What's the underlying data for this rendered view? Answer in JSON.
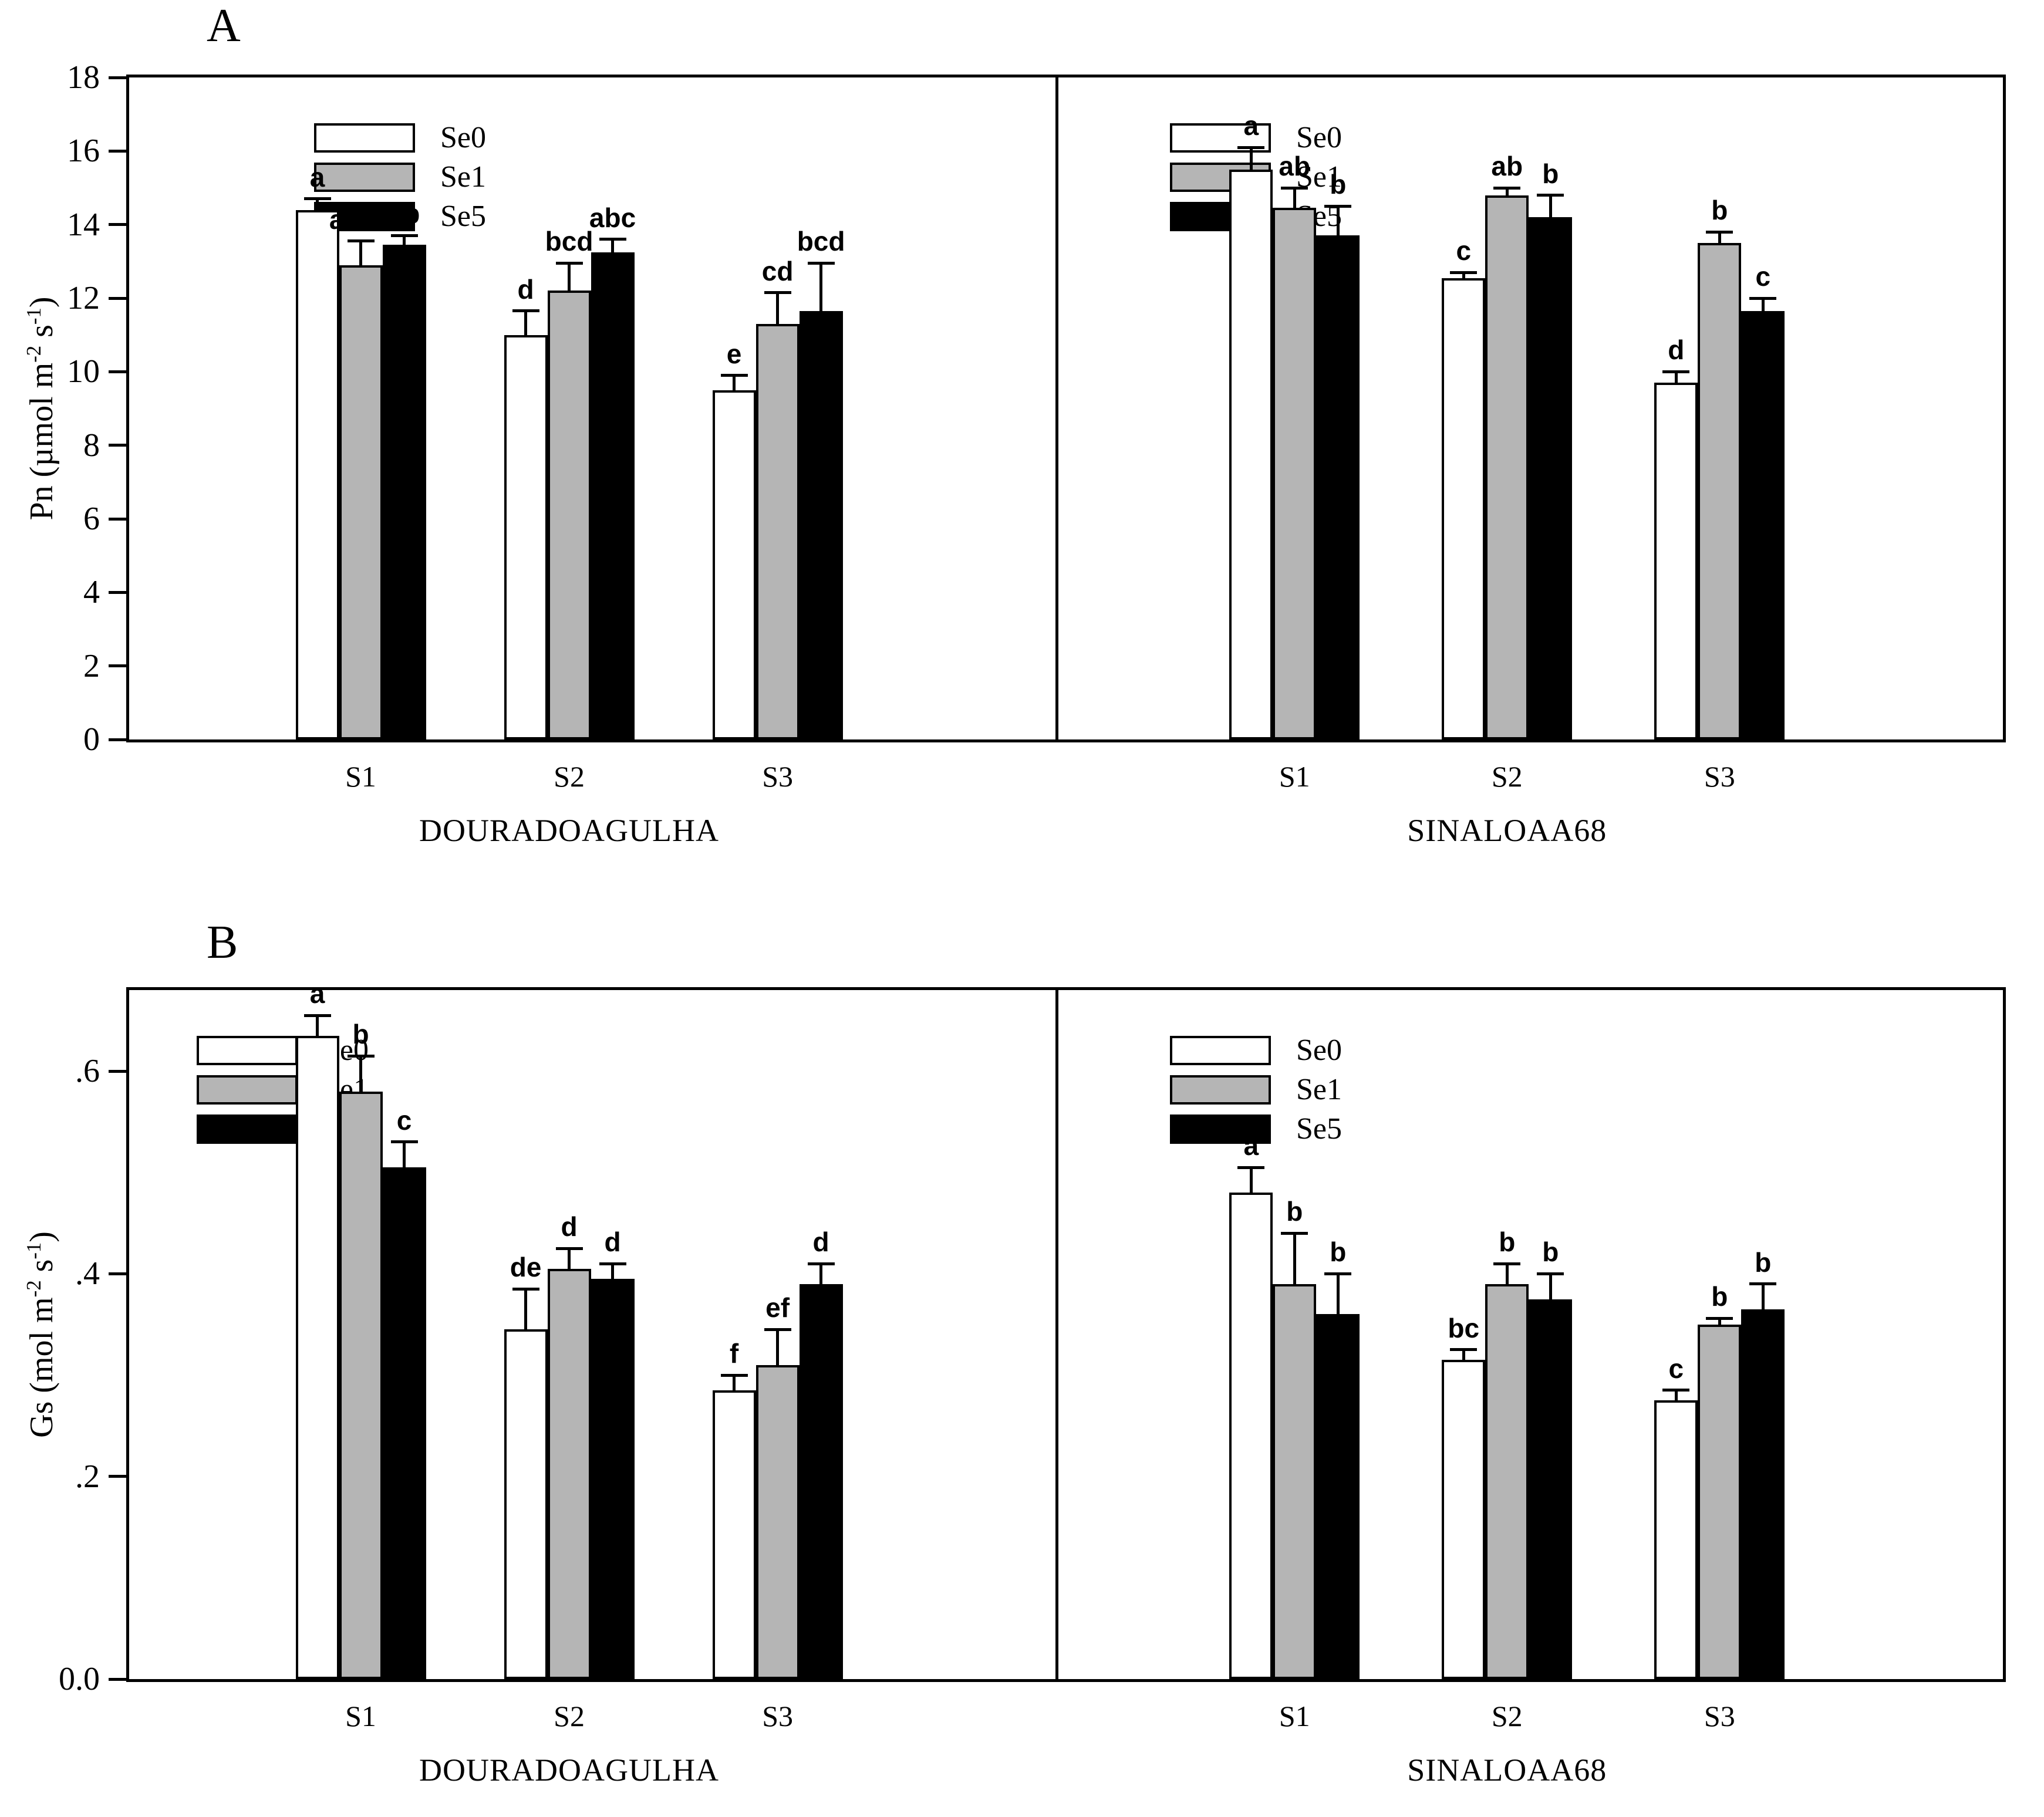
{
  "figure": {
    "background": "#ffffff",
    "text_color": "#000000"
  },
  "colors": {
    "Se0": "#ffffff",
    "Se1": "#b5b5b5",
    "Se5": "#000000",
    "axis": "#000000"
  },
  "chart_data": [
    {
      "panel": "A",
      "type": "bar",
      "ylabel": {
        "pre": "Pn (µmol m",
        "sup1": "-2",
        "mid": " s",
        "sup2": "-1",
        "post": ")"
      },
      "ylim": [
        0,
        18
      ],
      "yticks": [
        0,
        2,
        4,
        6,
        8,
        10,
        12,
        14,
        16,
        18
      ],
      "ytick_labels": [
        "0",
        "2",
        "4",
        "6",
        "8",
        "10",
        "12",
        "14",
        "16",
        "18"
      ],
      "grid": false,
      "legend_position": "top-left of each half",
      "legend": [
        "Se0",
        "Se1",
        "Se5"
      ],
      "groups": [
        "S1",
        "S2",
        "S3"
      ],
      "halves": [
        {
          "cultivar": "DOURADOAGULHA",
          "series": [
            {
              "name": "Se0",
              "values": [
                14.4,
                11.0,
                9.5
              ],
              "errors": [
                0.3,
                0.65,
                0.4
              ],
              "letters": [
                "a",
                "d",
                "e"
              ]
            },
            {
              "name": "Se1",
              "values": [
                12.9,
                12.2,
                11.3
              ],
              "errors": [
                0.65,
                0.75,
                0.85
              ],
              "letters": [
                "abcd",
                "bcd",
                "cd"
              ]
            },
            {
              "name": "Se5",
              "values": [
                13.45,
                13.25,
                11.65
              ],
              "errors": [
                0.25,
                0.35,
                1.3
              ],
              "letters": [
                "ab",
                "abc",
                "bcd"
              ]
            }
          ]
        },
        {
          "cultivar": "SINALOAA68",
          "series": [
            {
              "name": "Se0",
              "values": [
                15.5,
                12.55,
                9.7
              ],
              "errors": [
                0.6,
                0.15,
                0.3
              ],
              "letters": [
                "a",
                "c",
                "d"
              ]
            },
            {
              "name": "Se1",
              "values": [
                14.45,
                14.8,
                13.5
              ],
              "errors": [
                0.55,
                0.2,
                0.3
              ],
              "letters": [
                "ab",
                "ab",
                "b"
              ]
            },
            {
              "name": "Se5",
              "values": [
                13.7,
                14.2,
                11.65
              ],
              "errors": [
                0.8,
                0.6,
                0.35
              ],
              "letters": [
                "b",
                "b",
                "c"
              ]
            }
          ]
        }
      ]
    },
    {
      "panel": "B",
      "type": "bar",
      "ylabel": {
        "pre": "Gs (mol m",
        "sup1": "-2",
        "mid": " s",
        "sup2": "-1",
        "post": ")"
      },
      "ylim": [
        0,
        0.68
      ],
      "yticks": [
        0,
        0.2,
        0.4,
        0.6
      ],
      "ytick_labels": [
        "0.0",
        ".2",
        ".4",
        ".6"
      ],
      "grid": false,
      "legend_position": "top-left of each half",
      "legend": [
        "Se0",
        "Se1",
        "Se5"
      ],
      "groups": [
        "S1",
        "S2",
        "S3"
      ],
      "halves": [
        {
          "cultivar": "DOURADOAGULHA",
          "series": [
            {
              "name": "Se0",
              "values": [
                0.635,
                0.345,
                0.285
              ],
              "errors": [
                0.02,
                0.04,
                0.015
              ],
              "letters": [
                "a",
                "de",
                "f"
              ]
            },
            {
              "name": "Se1",
              "values": [
                0.58,
                0.405,
                0.31
              ],
              "errors": [
                0.035,
                0.02,
                0.035
              ],
              "letters": [
                "b",
                "d",
                "ef"
              ]
            },
            {
              "name": "Se5",
              "values": [
                0.505,
                0.395,
                0.39
              ],
              "errors": [
                0.025,
                0.015,
                0.02
              ],
              "letters": [
                "c",
                "d",
                "d"
              ]
            }
          ]
        },
        {
          "cultivar": "SINALOAA68",
          "series": [
            {
              "name": "Se0",
              "values": [
                0.48,
                0.315,
                0.275
              ],
              "errors": [
                0.025,
                0.01,
                0.01
              ],
              "letters": [
                "a",
                "bc",
                "c"
              ]
            },
            {
              "name": "Se1",
              "values": [
                0.39,
                0.39,
                0.35
              ],
              "errors": [
                0.05,
                0.02,
                0.006
              ],
              "letters": [
                "b",
                "b",
                "b"
              ]
            },
            {
              "name": "Se5",
              "values": [
                0.36,
                0.375,
                0.365
              ],
              "errors": [
                0.04,
                0.025,
                0.025
              ],
              "letters": [
                "b",
                "b",
                "b"
              ]
            }
          ]
        }
      ]
    }
  ]
}
